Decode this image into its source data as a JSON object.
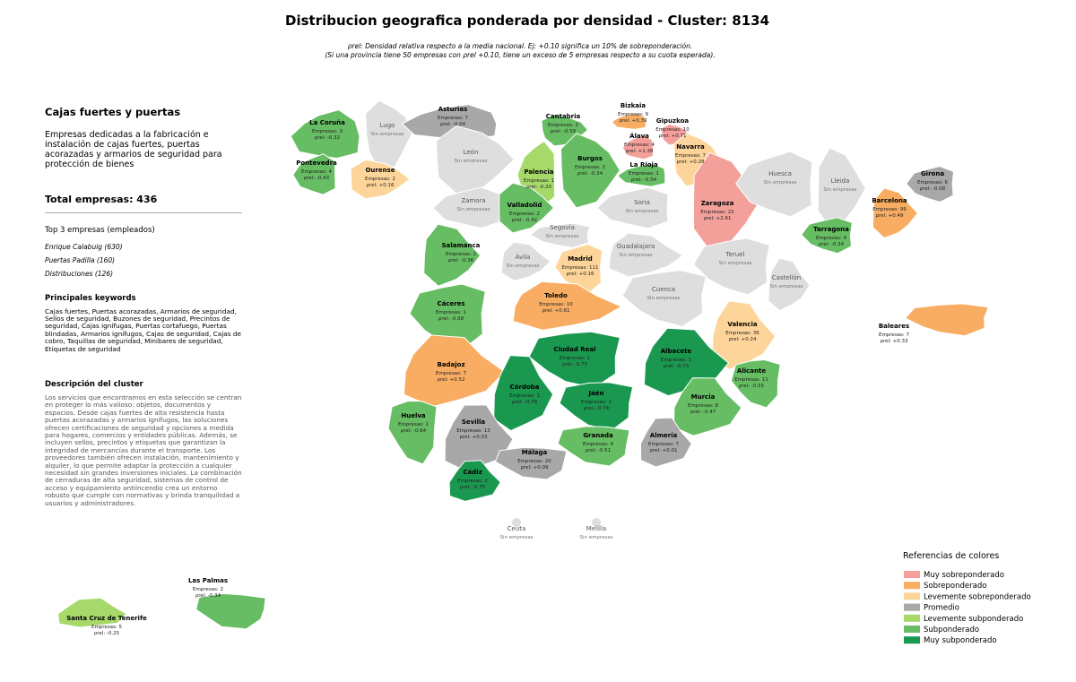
{
  "header": {
    "title": "Distribucion geografica ponderada por densidad - Cluster: 8134",
    "note_1": "ρrel: Densidad relativa respecto a la media nacional. Ej: +0.10 significa un 10% de sobreponderación.",
    "note_2": "(Si una provincia tiene 50 empresas con ρrel +0.10, tiene un exceso de 5 empresas respecto a su cuota esperada)."
  },
  "sidebar": {
    "title": "Cajas fuertes y puertas",
    "summary": "Empresas dedicadas a la fabricación e instalación de cajas fuertes, puertas acorazadas y armarios de seguridad para protección de bienes",
    "total": "Total empresas: 436",
    "top_title": "Top 3 empresas (empleados)",
    "top": [
      "Enrique Calabuig (630)",
      "Puertas Padilla (160)",
      "Distribuciones (126)"
    ],
    "keywords_title": "Principales keywords",
    "keywords": "Cajas fuertes, Puertas acorazadas, Armarios de seguridad, Sellos de seguridad, Buzones de seguridad, Precintos de seguridad, Cajas ignífugas, Puertas cortafuego, Puertas blindadas, Armarios ignífugos, Cajas de seguridad, Cajas de cobro, Taquillas de seguridad, Minibares de seguridad, Etiquetas de seguridad",
    "description_title": "Descripción del cluster",
    "description": "Los servicios que encontramos en esta selección se centran en proteger lo más valioso: objetos, documentos y espacios. Desde cajas fuertes de alta resistencia hasta puertas acorazadas y armarios ignífugos, las soluciones ofrecen certificaciones de seguridad y opciones a medida para hogares, comercios y entidades públicas. Además, se incluyen sellos, precintos y etiquetas que garantizan la integridad de mercancías durante el transporte. Los proveedores también ofrecen instalación, mantenimiento y alquiler, lo que permite adaptar la protección a cualquier necesidad sin grandes inversiones iniciales. La combinación de cerraduras de alta seguridad, sistemas de control de acceso y equipamiento antiincendio crea un entorno robusto que cumple con normativas y brinda tranquilidad a usuarios y administradores."
  },
  "legend": {
    "title": "Referencias de colores",
    "items": [
      {
        "label": "Muy sobreponderado",
        "color": "#f4a09a"
      },
      {
        "label": "Sobreponderado",
        "color": "#f8ad63"
      },
      {
        "label": "Levemente sobreponderado",
        "color": "#fdd59a"
      },
      {
        "label": "Promedio",
        "color": "#a8a8a8"
      },
      {
        "label": "Levemente subponderado",
        "color": "#a6d96a"
      },
      {
        "label": "Subponderado",
        "color": "#66bd63"
      },
      {
        "label": "Muy subponderado",
        "color": "#1a9850"
      }
    ]
  },
  "provinces": [
    {
      "name": "La Coruña",
      "lines": [
        "Empresas: 3",
        "ρrel: -0.32"
      ],
      "color": "#66bd63"
    },
    {
      "name": "Lugo",
      "lines": [
        "Sin empresas"
      ],
      "color": "#dedede"
    },
    {
      "name": "Asturias",
      "lines": [
        "Empresas: 7",
        "ρrel: -0.04"
      ],
      "color": "#a8a8a8"
    },
    {
      "name": "Cantabria",
      "lines": [
        "Empresas: 2",
        "ρrel: -0.59"
      ],
      "color": "#66bd63"
    },
    {
      "name": "Bizkaia",
      "lines": [
        "Empresas: 9",
        "ρrel: +0.39"
      ],
      "color": "#f8ad63"
    },
    {
      "name": "Gipuzkoa",
      "lines": [
        "Empresas: 10",
        "ρrel: +0.71"
      ],
      "color": "#f4a09a"
    },
    {
      "name": "Álava",
      "lines": [
        "Empresas: 4",
        "ρrel: +1.38"
      ],
      "color": "#f4a09a"
    },
    {
      "name": "Navarra",
      "lines": [
        "Empresas: 7",
        "ρrel: +0.28"
      ],
      "color": "#fdd59a"
    },
    {
      "name": "La Rioja",
      "lines": [
        "Empresas: 1",
        "ρrel: -0.54"
      ],
      "color": "#66bd63"
    },
    {
      "name": "Burgos",
      "lines": [
        "Empresas: 2",
        "ρrel: -0.34"
      ],
      "color": "#66bd63"
    },
    {
      "name": "Palencia",
      "lines": [
        "Empresas: 1",
        "ρrel: -0.20"
      ],
      "color": "#a6d96a"
    },
    {
      "name": "León",
      "lines": [
        "Sin empresas"
      ],
      "color": "#dedede"
    },
    {
      "name": "Pontevedra",
      "lines": [
        "Empresas: 4",
        "ρrel: -0.43"
      ],
      "color": "#66bd63"
    },
    {
      "name": "Ourense",
      "lines": [
        "Empresas: 2",
        "ρrel: +0.16"
      ],
      "color": "#fdd59a"
    },
    {
      "name": "Zamora",
      "lines": [
        "Sin empresas"
      ],
      "color": "#dedede"
    },
    {
      "name": "Valladolid",
      "lines": [
        "Empresas: 2",
        "ρrel: -0.42"
      ],
      "color": "#66bd63"
    },
    {
      "name": "Soria",
      "lines": [
        "Sin empresas"
      ],
      "color": "#dedede"
    },
    {
      "name": "Zaragoza",
      "lines": [
        "Empresas: 22",
        "ρrel: +2.61"
      ],
      "color": "#f4a09a"
    },
    {
      "name": "Huesca",
      "lines": [
        "Sin empresas"
      ],
      "color": "#dedede"
    },
    {
      "name": "Lleida",
      "lines": [
        "Sin empresas"
      ],
      "color": "#dedede"
    },
    {
      "name": "Girona",
      "lines": [
        "Empresas: 6",
        "ρrel: -0.08"
      ],
      "color": "#a8a8a8"
    },
    {
      "name": "Barcelona",
      "lines": [
        "Empresas: 99",
        "ρrel: +0.49"
      ],
      "color": "#f8ad63"
    },
    {
      "name": "Tarragona",
      "lines": [
        "Empresas: 4",
        "ρrel: -0.34"
      ],
      "color": "#66bd63"
    },
    {
      "name": "Salamanca",
      "lines": [
        "Empresas: 2",
        "ρrel: -0.36"
      ],
      "color": "#66bd63"
    },
    {
      "name": "Segovia",
      "lines": [
        "Sin empresas"
      ],
      "color": "#dedede"
    },
    {
      "name": "Ávila",
      "lines": [
        "Sin empresas"
      ],
      "color": "#dedede"
    },
    {
      "name": "Madrid",
      "lines": [
        "Empresas: 111",
        "ρrel: +0.16"
      ],
      "color": "#fdd59a"
    },
    {
      "name": "Guadalajara",
      "lines": [
        "Sin empresas"
      ],
      "color": "#dedede"
    },
    {
      "name": "Teruel",
      "lines": [
        "Sin empresas"
      ],
      "color": "#dedede"
    },
    {
      "name": "Castellón",
      "lines": [
        "Sin empresas"
      ],
      "color": "#dedede"
    },
    {
      "name": "Cáceres",
      "lines": [
        "Empresas: 1",
        "ρrel: -0.58"
      ],
      "color": "#66bd63"
    },
    {
      "name": "Toledo",
      "lines": [
        "Empresas: 10",
        "ρrel: +0.61"
      ],
      "color": "#f8ad63"
    },
    {
      "name": "Cuenca",
      "lines": [
        "Sin empresas"
      ],
      "color": "#dedede"
    },
    {
      "name": "Valencia",
      "lines": [
        "Empresas: 36",
        "ρrel: +0.24"
      ],
      "color": "#fdd59a"
    },
    {
      "name": "Baleares",
      "lines": [
        "Empresas: 7",
        "ρrel: +0.33"
      ],
      "color": "#f8ad63"
    },
    {
      "name": "Badajoz",
      "lines": [
        "Empresas: 7",
        "ρrel: +0.52"
      ],
      "color": "#f8ad63"
    },
    {
      "name": "Ciudad Real",
      "lines": [
        "Empresas: 1",
        "ρrel: -0.75"
      ],
      "color": "#1a9850"
    },
    {
      "name": "Albacete",
      "lines": [
        "Empresas: 1",
        "ρrel: -0.73"
      ],
      "color": "#1a9850"
    },
    {
      "name": "Alicante",
      "lines": [
        "Empresas: 11",
        "ρrel: -0.55"
      ],
      "color": "#66bd63"
    },
    {
      "name": "Córdoba",
      "lines": [
        "Empresas: 1",
        "ρrel: -0.78"
      ],
      "color": "#1a9850"
    },
    {
      "name": "Jaén",
      "lines": [
        "Empresas: 1",
        "ρrel: -0.74"
      ],
      "color": "#1a9850"
    },
    {
      "name": "Murcia",
      "lines": [
        "Empresas: 8",
        "ρrel: -0.47"
      ],
      "color": "#66bd63"
    },
    {
      "name": "Huelva",
      "lines": [
        "Empresas: 1",
        "ρrel: -0.64"
      ],
      "color": "#66bd63"
    },
    {
      "name": "Sevilla",
      "lines": [
        "Empresas: 13",
        "ρrel: +0.03"
      ],
      "color": "#a8a8a8"
    },
    {
      "name": "Granada",
      "lines": [
        "Empresas: 4",
        "ρrel: -0.51"
      ],
      "color": "#66bd63"
    },
    {
      "name": "Almería",
      "lines": [
        "Empresas: 7",
        "ρrel: +0.01"
      ],
      "color": "#a8a8a8"
    },
    {
      "name": "Málaga",
      "lines": [
        "Empresas: 20",
        "ρrel: +0.09"
      ],
      "color": "#a8a8a8"
    },
    {
      "name": "Cádiz",
      "lines": [
        "Empresas: 2",
        "ρrel: -0.75"
      ],
      "color": "#1a9850"
    },
    {
      "name": "Ceuta",
      "lines": [
        "Sin empresas"
      ],
      "color": "#dedede"
    },
    {
      "name": "Melilla",
      "lines": [
        "Sin empresas"
      ],
      "color": "#dedede"
    },
    {
      "name": "Las Palmas",
      "lines": [
        "Empresas: 2",
        "ρrel: -0.34"
      ],
      "color": "#66bd63"
    },
    {
      "name": "Santa Cruz de Tenerife",
      "lines": [
        "Empresas: 5",
        "ρrel: -0.25"
      ],
      "color": "#a6d96a"
    }
  ]
}
